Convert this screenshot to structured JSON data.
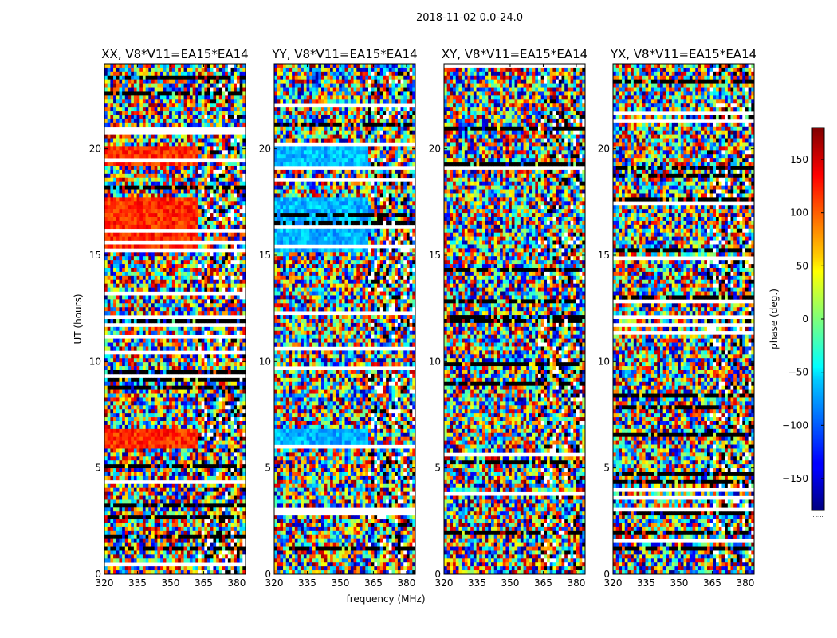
{
  "figure": {
    "suptitle": "2018-11-02 0.0-24.0",
    "ylabel": "UT (hours)",
    "xlabel": "frequency (MHz)",
    "colorbar_label": "phase (deg.)",
    "colorbar_ticks": [
      "150",
      "100",
      "50",
      "0",
      "−50",
      "−100",
      "−150"
    ],
    "colorbar_ellipsis": "......"
  },
  "chart_data": [
    {
      "type": "heatmap",
      "title": "XX, V8*V11=EA15*EA14",
      "xlabel": "frequency (MHz)",
      "ylabel": "UT (hours)",
      "xlim": [
        320,
        384
      ],
      "ylim": [
        0,
        24
      ],
      "xticks": [
        320,
        335,
        350,
        365,
        380
      ],
      "yticks": [
        0,
        5,
        10,
        15,
        20
      ],
      "xtick_labels": [
        "320",
        "335",
        "350",
        "365",
        "380"
      ],
      "ytick_labels": [
        "0",
        "5",
        "10",
        "15",
        "20"
      ],
      "colorbar_range": [
        -180,
        180
      ],
      "coherent_phase_bands": [
        {
          "ut": [
            19.2,
            20.2
          ],
          "phase": 120
        },
        {
          "ut": [
            15.1,
            17.8
          ],
          "phase": 120
        },
        {
          "ut": [
            5.9,
            6.8
          ],
          "phase": 120
        }
      ]
    },
    {
      "type": "heatmap",
      "title": "YY, V8*V11=EA15*EA14",
      "xlabel": "frequency (MHz)",
      "ylabel": "UT (hours)",
      "xlim": [
        320,
        384
      ],
      "ylim": [
        0,
        24
      ],
      "xticks": [
        320,
        335,
        350,
        365,
        380
      ],
      "yticks": [
        0,
        5,
        10,
        15,
        20
      ],
      "xtick_labels": [
        "320",
        "335",
        "350",
        "365",
        "380"
      ],
      "ytick_labels": [
        "0",
        "5",
        "10",
        "15",
        "20"
      ],
      "colorbar_range": [
        -180,
        180
      ],
      "coherent_phase_bands": [
        {
          "ut": [
            19.2,
            20.2
          ],
          "phase": -70
        },
        {
          "ut": [
            15.1,
            17.8
          ],
          "phase": -70
        },
        {
          "ut": [
            5.9,
            6.8
          ],
          "phase": -70
        }
      ]
    },
    {
      "type": "heatmap",
      "title": "XY, V8*V11=EA15*EA14",
      "xlabel": "frequency (MHz)",
      "ylabel": "UT (hours)",
      "xlim": [
        320,
        384
      ],
      "ylim": [
        0,
        24
      ],
      "xticks": [
        320,
        335,
        350,
        365,
        380
      ],
      "yticks": [
        0,
        5,
        10,
        15,
        20
      ],
      "xtick_labels": [
        "320",
        "335",
        "350",
        "365",
        "380"
      ],
      "ytick_labels": [
        "0",
        "5",
        "10",
        "15",
        "20"
      ],
      "colorbar_range": [
        -180,
        180
      ],
      "coherent_phase_bands": []
    },
    {
      "type": "heatmap",
      "title": "YX, V8*V11=EA15*EA14",
      "xlabel": "frequency (MHz)",
      "ylabel": "UT (hours)",
      "xlim": [
        320,
        384
      ],
      "ylim": [
        0,
        24
      ],
      "xticks": [
        320,
        335,
        350,
        365,
        380
      ],
      "yticks": [
        0,
        5,
        10,
        15,
        20
      ],
      "xtick_labels": [
        "320",
        "335",
        "350",
        "365",
        "380"
      ],
      "ytick_labels": [
        "0",
        "5",
        "10",
        "15",
        "20"
      ],
      "colorbar_range": [
        -180,
        180
      ],
      "coherent_phase_bands": []
    }
  ]
}
